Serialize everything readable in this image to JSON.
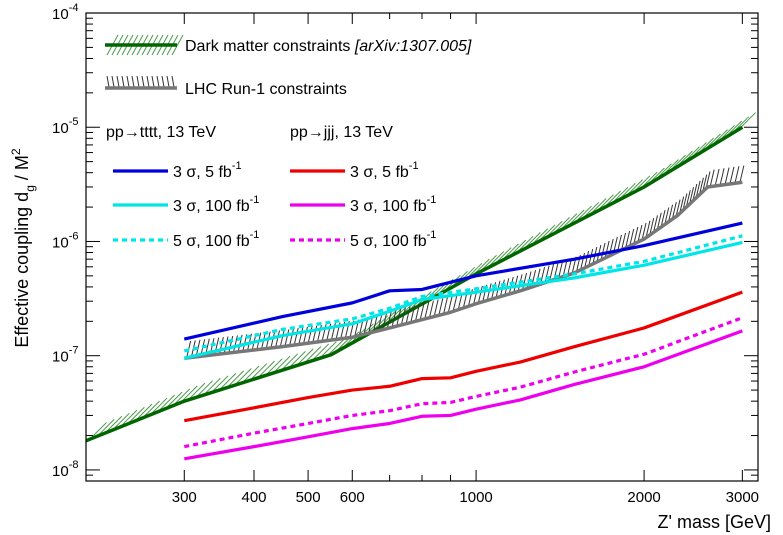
{
  "chart_data": {
    "type": "line",
    "x_scale": "log",
    "y_scale": "log",
    "xlim": [
      200,
      3200
    ],
    "ylim": [
      8e-09,
      0.0001
    ],
    "xlabel": "Z' mass [GeV]",
    "ylabel": {
      "main": "Effective coupling d",
      "sub": "g",
      "slash": " / M",
      "sup": "2"
    },
    "x_ticks": [
      {
        "value": 300,
        "label": "300"
      },
      {
        "value": 400,
        "label": "400"
      },
      {
        "value": 500,
        "label": "500"
      },
      {
        "value": 600,
        "label": "600"
      },
      {
        "value": 1000,
        "label": "1000"
      },
      {
        "value": 2000,
        "label": "2000"
      },
      {
        "value": 3000,
        "label": "3000"
      }
    ],
    "y_ticks": [
      {
        "value": 1e-08,
        "base": "10",
        "exp": "-8"
      },
      {
        "value": 1e-07,
        "base": "10",
        "exp": "-7"
      },
      {
        "value": 1e-06,
        "base": "10",
        "exp": "-6"
      },
      {
        "value": 1e-05,
        "base": "10",
        "exp": "-5"
      },
      {
        "value": 0.0001,
        "base": "10",
        "exp": "-4"
      }
    ],
    "grid": false,
    "legend": {
      "position": "top-left",
      "constraints": [
        {
          "label": "Dark matter constraints",
          "note": "[arXiv:1307.005]",
          "color": "#006600",
          "hatch": "forward"
        },
        {
          "label": "LHC Run-1 constraints",
          "note": "",
          "color": "#777777",
          "hatch": "vertical"
        }
      ],
      "column_headers": [
        "pp→tttt, 13 TeV",
        "pp→jjj, 13 TeV"
      ]
    },
    "constraints": [
      {
        "name": "Dark matter constraints",
        "color": "#006600",
        "hatch_color": "#4a9a4a",
        "x": [
          200,
          300,
          550,
          1000,
          2000,
          3000
        ],
        "y": [
          1.8e-08,
          4e-08,
          1.02e-07,
          5.2e-07,
          3e-06,
          1e-05
        ]
      },
      {
        "name": "LHC Run-1 constraints",
        "color": "#777777",
        "hatch_color": "#333333",
        "x": [
          300,
          450,
          600,
          700,
          900,
          1000,
          1200,
          1500,
          2000,
          2300,
          2600,
          3000
        ],
        "y": [
          9.5e-08,
          1.2e-07,
          1.45e-07,
          1.75e-07,
          2.4e-07,
          2.85e-07,
          3.7e-07,
          5.3e-07,
          1.05e-06,
          1.7e-06,
          3e-06,
          3.3e-06
        ]
      }
    ],
    "series": [
      {
        "name": "3 σ, 5 fb",
        "sup": "-1",
        "group": "tttt",
        "color": "#0000dd",
        "dash": false,
        "x": [
          300,
          450,
          600,
          700,
          800,
          1000,
          1500,
          2000,
          3000
        ],
        "y": [
          1.4e-07,
          2.2e-07,
          2.9e-07,
          3.7e-07,
          3.8e-07,
          5e-07,
          7e-07,
          9.2e-07,
          1.45e-06
        ]
      },
      {
        "name": "3 σ, 100 fb",
        "sup": "-1",
        "group": "tttt",
        "color": "#00e5e5",
        "dash": false,
        "x": [
          300,
          450,
          600,
          700,
          800,
          1000,
          1500,
          2000,
          3000
        ],
        "y": [
          9.5e-08,
          1.5e-07,
          1.9e-07,
          2.45e-07,
          3.1e-07,
          3.6e-07,
          4.8e-07,
          6.2e-07,
          9.8e-07
        ]
      },
      {
        "name": "5 σ, 100 fb",
        "sup": "-1",
        "group": "tttt",
        "color": "#00e5e5",
        "dash": true,
        "x": [
          300,
          450,
          600,
          700,
          800,
          1000,
          1500,
          2000,
          3000
        ],
        "y": [
          1.1e-07,
          1.7e-07,
          2.1e-07,
          2.6e-07,
          3.3e-07,
          3.85e-07,
          5.2e-07,
          6.7e-07,
          1.12e-06
        ]
      },
      {
        "name": "3 σ, 5 fb",
        "sup": "-1",
        "group": "jjj",
        "color": "#ee0000",
        "dash": false,
        "x": [
          300,
          400,
          500,
          600,
          700,
          800,
          900,
          1000,
          1200,
          1500,
          2000,
          3000
        ],
        "y": [
          2.7e-08,
          3.5e-08,
          4.3e-08,
          5e-08,
          5.4e-08,
          6.3e-08,
          6.4e-08,
          7.3e-08,
          8.8e-08,
          1.2e-07,
          1.75e-07,
          3.6e-07
        ]
      },
      {
        "name": "3 σ, 100 fb",
        "sup": "-1",
        "group": "jjj",
        "color": "#ee00ee",
        "dash": false,
        "x": [
          300,
          400,
          500,
          600,
          700,
          800,
          900,
          1000,
          1200,
          1500,
          2000,
          3000
        ],
        "y": [
          1.25e-08,
          1.6e-08,
          1.95e-08,
          2.3e-08,
          2.55e-08,
          2.95e-08,
          3e-08,
          3.4e-08,
          4.1e-08,
          5.6e-08,
          8e-08,
          1.65e-07
        ]
      },
      {
        "name": "5 σ, 100 fb",
        "sup": "-1",
        "group": "jjj",
        "color": "#ee00ee",
        "dash": true,
        "x": [
          300,
          400,
          500,
          600,
          700,
          800,
          900,
          1000,
          1200,
          1500,
          2000,
          3000
        ],
        "y": [
          1.6e-08,
          2.1e-08,
          2.55e-08,
          3e-08,
          3.3e-08,
          3.8e-08,
          3.9e-08,
          4.4e-08,
          5.3e-08,
          7.2e-08,
          1.03e-07,
          2.15e-07
        ]
      }
    ]
  }
}
